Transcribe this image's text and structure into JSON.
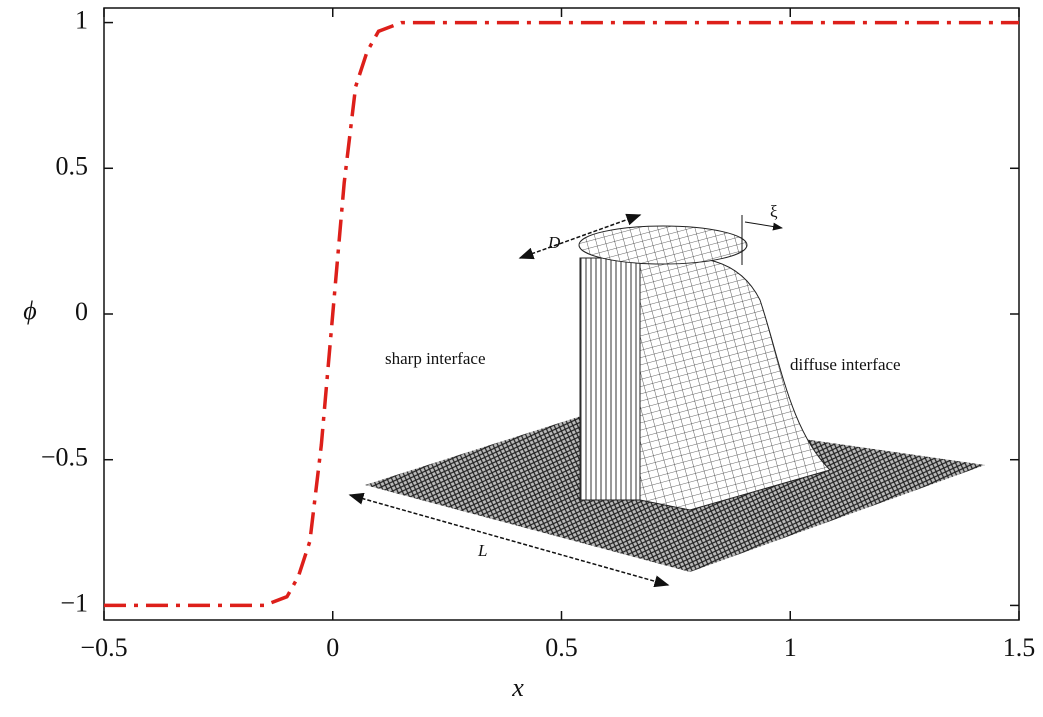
{
  "chart_data": {
    "type": "line",
    "xlabel": "x",
    "ylabel": "ϕ",
    "x": [
      -0.5,
      -0.2,
      -0.15,
      -0.1,
      -0.075,
      -0.05,
      -0.025,
      0,
      0.025,
      0.05,
      0.075,
      0.1,
      0.15,
      0.2,
      1.5
    ],
    "series": [
      {
        "color": "#dd1f1a",
        "values": [
          -1,
          -1,
          -1,
          -0.97,
          -0.9,
          -0.78,
          -0.45,
          0,
          0.45,
          0.78,
          0.9,
          0.97,
          1,
          1,
          1
        ]
      }
    ],
    "xlim": [
      -0.5,
      1.5
    ],
    "ylim": [
      -1.05,
      1.05
    ],
    "xticks": [
      {
        "value": -0.5,
        "label": "−0.5"
      },
      0,
      0.5,
      1,
      1.5
    ],
    "yticks": [
      {
        "value": -1,
        "label": "−1"
      },
      {
        "value": -0.5,
        "label": "−0.5"
      },
      0,
      0.5,
      1
    ],
    "inset": {
      "diameter": "D",
      "width": "ξ",
      "length": "L",
      "left": "sharp interface",
      "right": "diffuse interface"
    }
  }
}
